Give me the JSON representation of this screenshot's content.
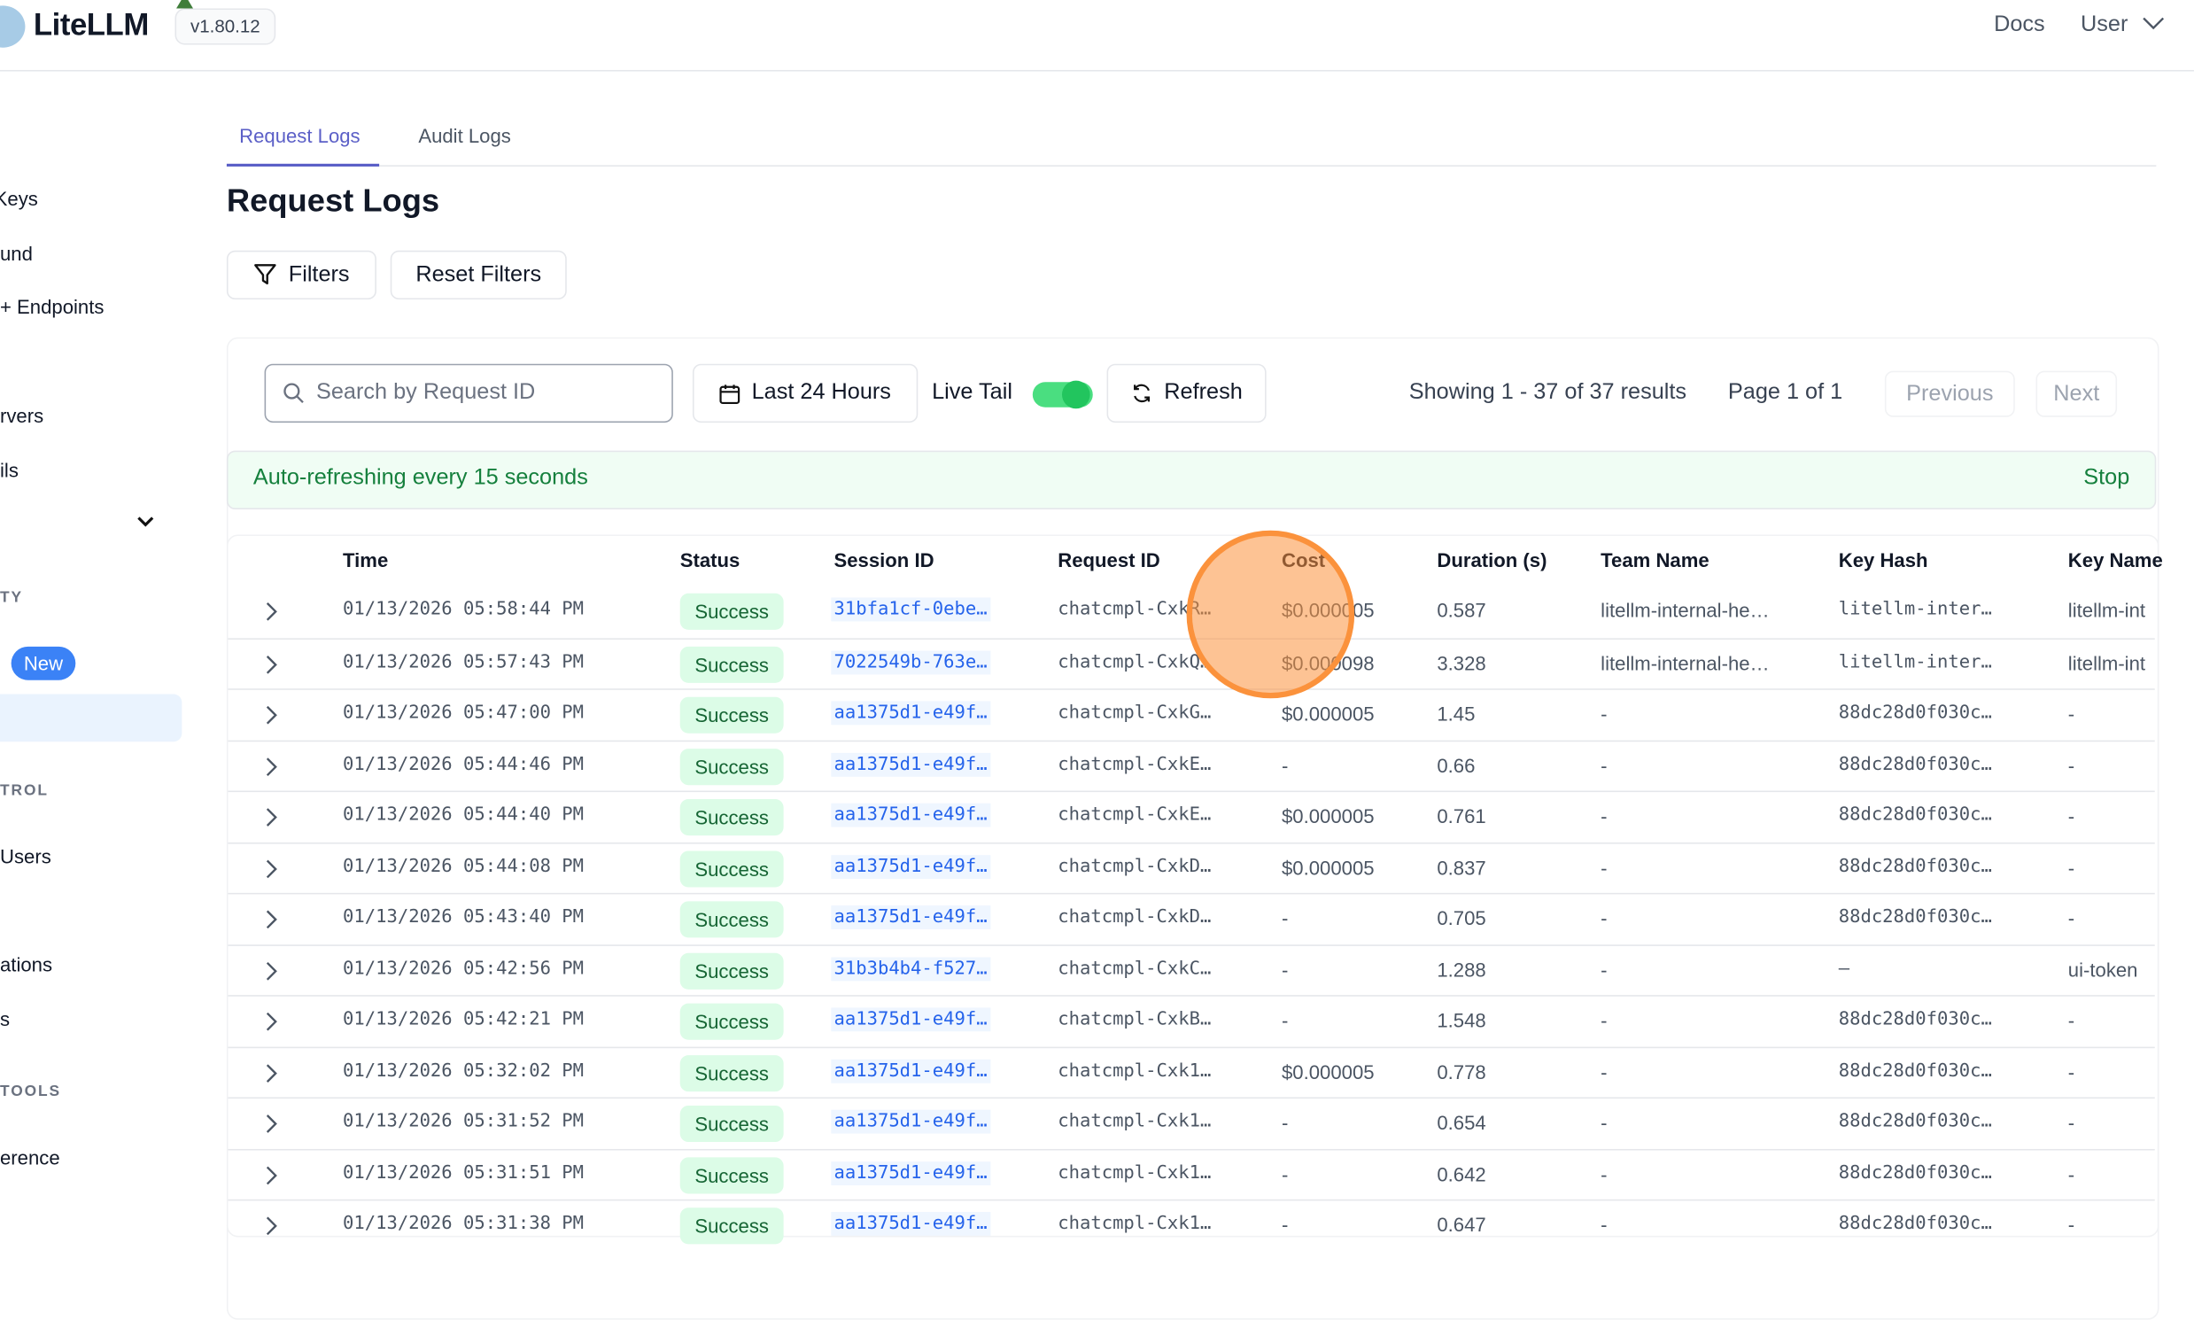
{
  "header": {
    "brand": "LiteLLM",
    "version": "v1.80.12",
    "docs": "Docs",
    "user": "User"
  },
  "sidebar": {
    "items": [
      "Keys",
      "und",
      "+ Endpoints",
      "rvers",
      "ils",
      "Users",
      "ations",
      "s",
      "erence"
    ],
    "sections": [
      "TY",
      "TROL",
      "TOOLS"
    ],
    "new_badge": "New"
  },
  "tabs": [
    {
      "label": "Request Logs",
      "active": true
    },
    {
      "label": "Audit Logs",
      "active": false
    }
  ],
  "page_title": "Request Logs",
  "toolbar": {
    "filters": "Filters",
    "reset_filters": "Reset Filters"
  },
  "controls": {
    "search_placeholder": "Search by Request ID",
    "time_range": "Last 24 Hours",
    "live_tail_label": "Live Tail",
    "live_tail_on": true,
    "refresh": "Refresh",
    "showing": "Showing 1 - 37 of 37 results",
    "page": "Page 1 of 1",
    "previous": "Previous",
    "next": "Next"
  },
  "banner": {
    "text": "Auto-refreshing every 15 seconds",
    "stop": "Stop"
  },
  "colors": {
    "accent": "#5b5fc7",
    "success_bg": "#dcfce7",
    "success_text": "#166534",
    "banner_bg": "#f0fdf4",
    "toggle": "#4ade80",
    "highlight": "#fb923c"
  },
  "table": {
    "columns": [
      "Time",
      "Status",
      "Session ID",
      "Request ID",
      "Cost",
      "Duration (s)",
      "Team Name",
      "Key Hash",
      "Key Name"
    ],
    "rows": [
      [
        "01/13/2026 05:58:44 PM",
        "Success",
        "31bfa1cf-0ebe…",
        "chatcmpl-CxkR…",
        "$0.000005",
        "0.587",
        "litellm-internal-he…",
        "litellm-inter…",
        "litellm-int"
      ],
      [
        "01/13/2026 05:57:43 PM",
        "Success",
        "7022549b-763e…",
        "chatcmpl-CxkQ…",
        "$0.000098",
        "3.328",
        "litellm-internal-he…",
        "litellm-inter…",
        "litellm-int"
      ],
      [
        "01/13/2026 05:47:00 PM",
        "Success",
        "aa1375d1-e49f…",
        "chatcmpl-CxkG…",
        "$0.000005",
        "1.45",
        "-",
        "88dc28d0f030c…",
        "-"
      ],
      [
        "01/13/2026 05:44:46 PM",
        "Success",
        "aa1375d1-e49f…",
        "chatcmpl-CxkE…",
        "-",
        "0.66",
        "-",
        "88dc28d0f030c…",
        "-"
      ],
      [
        "01/13/2026 05:44:40 PM",
        "Success",
        "aa1375d1-e49f…",
        "chatcmpl-CxkE…",
        "$0.000005",
        "0.761",
        "-",
        "88dc28d0f030c…",
        "-"
      ],
      [
        "01/13/2026 05:44:08 PM",
        "Success",
        "aa1375d1-e49f…",
        "chatcmpl-CxkD…",
        "$0.000005",
        "0.837",
        "-",
        "88dc28d0f030c…",
        "-"
      ],
      [
        "01/13/2026 05:43:40 PM",
        "Success",
        "aa1375d1-e49f…",
        "chatcmpl-CxkD…",
        "-",
        "0.705",
        "-",
        "88dc28d0f030c…",
        "-"
      ],
      [
        "01/13/2026 05:42:56 PM",
        "Success",
        "31b3b4b4-f527…",
        "chatcmpl-CxkC…",
        "-",
        "1.288",
        "-",
        "–",
        "ui-token"
      ],
      [
        "01/13/2026 05:42:21 PM",
        "Success",
        "aa1375d1-e49f…",
        "chatcmpl-CxkB…",
        "-",
        "1.548",
        "-",
        "88dc28d0f030c…",
        "-"
      ],
      [
        "01/13/2026 05:32:02 PM",
        "Success",
        "aa1375d1-e49f…",
        "chatcmpl-Cxk1…",
        "$0.000005",
        "0.778",
        "-",
        "88dc28d0f030c…",
        "-"
      ],
      [
        "01/13/2026 05:31:52 PM",
        "Success",
        "aa1375d1-e49f…",
        "chatcmpl-Cxk1…",
        "-",
        "0.654",
        "-",
        "88dc28d0f030c…",
        "-"
      ],
      [
        "01/13/2026 05:31:51 PM",
        "Success",
        "aa1375d1-e49f…",
        "chatcmpl-Cxk1…",
        "-",
        "0.642",
        "-",
        "88dc28d0f030c…",
        "-"
      ],
      [
        "01/13/2026 05:31:38 PM",
        "Success",
        "aa1375d1-e49f…",
        "chatcmpl-Cxk1…",
        "-",
        "0.647",
        "-",
        "88dc28d0f030c…",
        "-"
      ]
    ]
  }
}
